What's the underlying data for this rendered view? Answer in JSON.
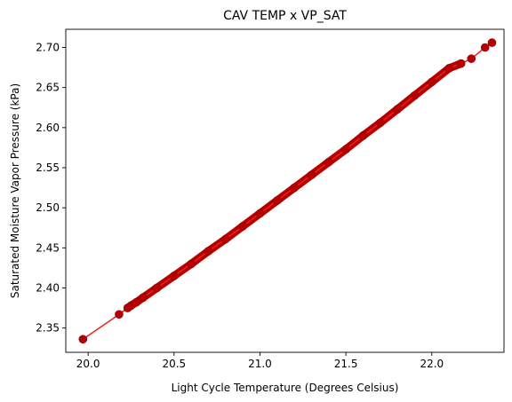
{
  "chart_data": {
    "type": "scatter",
    "title": "CAV TEMP x VP_SAT",
    "xlabel": "Light Cycle Temperature (Degrees Celsius)",
    "ylabel": "Saturated Moisture Vapor Pressure (kPa)",
    "xlim": [
      19.87,
      22.42
    ],
    "ylim": [
      2.3197,
      2.7227
    ],
    "xticks": [
      20.0,
      20.5,
      21.0,
      21.5,
      22.0
    ],
    "xtick_labels": [
      "20.0",
      "20.5",
      "21.0",
      "21.5",
      "22.0"
    ],
    "yticks": [
      2.35,
      2.4,
      2.45,
      2.5,
      2.55,
      2.6,
      2.65,
      2.7
    ],
    "ytick_labels": [
      "2.35",
      "2.40",
      "2.45",
      "2.50",
      "2.55",
      "2.60",
      "2.65",
      "2.70"
    ],
    "grid": false,
    "series": [
      {
        "color": "#b80000",
        "line_color": "#e8211b",
        "marker": "circle",
        "x": [
          19.97,
          20.18,
          20.23,
          20.25,
          20.28,
          20.32,
          20.4,
          20.5,
          20.6,
          20.7,
          20.8,
          20.9,
          21.0,
          21.1,
          21.2,
          21.3,
          21.4,
          21.5,
          21.6,
          21.7,
          21.8,
          21.9,
          22.0,
          22.1,
          22.17,
          22.23,
          22.31,
          22.35
        ],
        "y": [
          2.336,
          2.367,
          2.375,
          2.378,
          2.382,
          2.388,
          2.4,
          2.415,
          2.43,
          2.446,
          2.461,
          2.477,
          2.493,
          2.509,
          2.525,
          2.541,
          2.557,
          2.573,
          2.59,
          2.606,
          2.623,
          2.64,
          2.657,
          2.674,
          2.68,
          2.686,
          2.7,
          2.706
        ]
      }
    ]
  }
}
